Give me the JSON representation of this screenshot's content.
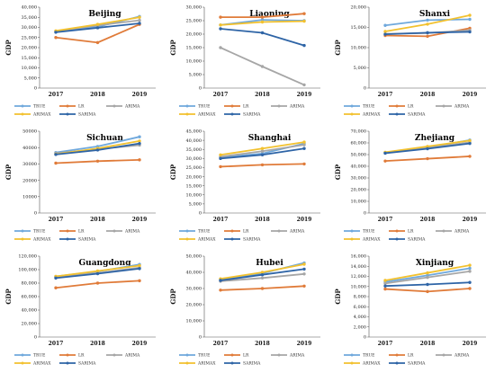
{
  "legend_labels": [
    "TRUE",
    "LR",
    "ARIMA",
    "ARIMAX",
    "SARIMA"
  ],
  "colors": {
    "TRUE": "#6fa8dc",
    "LR": "#e07b39",
    "ARIMA": "#a6a6a6",
    "ARIMAX": "#f2c12e",
    "SARIMA": "#2e64a6"
  },
  "chart_data": [
    {
      "type": "line",
      "title": "Beijing",
      "ylabel": "GDP",
      "categories": [
        "2017",
        "2018",
        "2019"
      ],
      "ylim": [
        0,
        40000
      ],
      "ytick_labels": [
        "0",
        "5,000",
        "10,000",
        "15,000",
        "20,000",
        "25,000",
        "30,000",
        "35,000",
        "40,000"
      ],
      "grid": false,
      "legend": "bottom",
      "series": [
        {
          "name": "TRUE",
          "values": [
            28000,
            30300,
            35400
          ]
        },
        {
          "name": "LR",
          "values": [
            25000,
            22500,
            31500
          ]
        },
        {
          "name": "ARIMA",
          "values": [
            28100,
            31000,
            33500
          ]
        },
        {
          "name": "ARIMAX",
          "values": [
            28300,
            31500,
            35000
          ]
        },
        {
          "name": "SARIMA",
          "values": [
            27600,
            29800,
            32000
          ]
        }
      ]
    },
    {
      "type": "line",
      "title": "Liaoning",
      "ylabel": "GDP",
      "categories": [
        "2017",
        "2018",
        "2019"
      ],
      "ylim": [
        0,
        30000
      ],
      "ytick_labels": [
        "0",
        "5,000",
        "10,000",
        "15,000",
        "20,000",
        "25,000",
        "30,000"
      ],
      "grid": false,
      "legend": "bottom",
      "series": [
        {
          "name": "TRUE",
          "values": [
            23400,
            25300,
            25000
          ]
        },
        {
          "name": "LR",
          "values": [
            26300,
            26300,
            27600
          ]
        },
        {
          "name": "ARIMA",
          "values": [
            15000,
            8000,
            1200
          ]
        },
        {
          "name": "ARIMAX",
          "values": [
            23400,
            24500,
            24800
          ]
        },
        {
          "name": "SARIMA",
          "values": [
            22000,
            20500,
            15800
          ]
        }
      ]
    },
    {
      "type": "line",
      "title": "Shanxi",
      "ylabel": "GDP",
      "categories": [
        "2017",
        "2018",
        "2019"
      ],
      "ylim": [
        0,
        20000
      ],
      "ytick_labels": [
        "0",
        "5,000",
        "10,000",
        "15,000",
        "20,000"
      ],
      "grid": false,
      "legend": "bottom",
      "series": [
        {
          "name": "TRUE",
          "values": [
            15500,
            16800,
            17000
          ]
        },
        {
          "name": "LR",
          "values": [
            13000,
            12800,
            14800
          ]
        },
        {
          "name": "ARIMA",
          "values": [
            13400,
            13600,
            14300
          ]
        },
        {
          "name": "ARIMAX",
          "values": [
            14000,
            15800,
            18000
          ]
        },
        {
          "name": "SARIMA",
          "values": [
            13300,
            13700,
            13900
          ]
        }
      ]
    },
    {
      "type": "line",
      "title": "Sichuan",
      "ylabel": "GDP",
      "categories": [
        "2017",
        "2018",
        "2019"
      ],
      "ylim": [
        0,
        50000
      ],
      "ytick_labels": [
        "0",
        "10000",
        "20000",
        "30000",
        "40000",
        "50000"
      ],
      "grid": false,
      "legend": "bottom",
      "series": [
        {
          "name": "TRUE",
          "values": [
            37000,
            40700,
            46600
          ]
        },
        {
          "name": "LR",
          "values": [
            30500,
            31700,
            32500
          ]
        },
        {
          "name": "ARIMA",
          "values": [
            36500,
            39000,
            41500
          ]
        },
        {
          "name": "ARIMAX",
          "values": [
            36000,
            39500,
            44000
          ]
        },
        {
          "name": "SARIMA",
          "values": [
            35800,
            38500,
            42500
          ]
        }
      ]
    },
    {
      "type": "line",
      "title": "Shanghai",
      "ylabel": "GDP",
      "categories": [
        "2017",
        "2018",
        "2019"
      ],
      "ylim": [
        0,
        45000
      ],
      "ytick_labels": [
        "0",
        "5,000",
        "10,000",
        "15,000",
        "20,000",
        "25,000",
        "30,000",
        "35,000",
        "40,000",
        "45,000"
      ],
      "grid": false,
      "legend": "bottom",
      "series": [
        {
          "name": "TRUE",
          "values": [
            30600,
            32700,
            38200
          ]
        },
        {
          "name": "LR",
          "values": [
            25500,
            26500,
            27000
          ]
        },
        {
          "name": "ARIMA",
          "values": [
            31000,
            34000,
            37500
          ]
        },
        {
          "name": "ARIMAX",
          "values": [
            32000,
            35500,
            39000
          ]
        },
        {
          "name": "SARIMA",
          "values": [
            30000,
            32000,
            35500
          ]
        }
      ]
    },
    {
      "type": "line",
      "title": "Zhejiang",
      "ylabel": "GDP",
      "categories": [
        "2017",
        "2018",
        "2019"
      ],
      "ylim": [
        0,
        70000
      ],
      "ytick_labels": [
        "0",
        "10,000",
        "20,000",
        "30,000",
        "40,000",
        "50,000",
        "60,000",
        "70,000"
      ],
      "grid": false,
      "legend": "bottom",
      "series": [
        {
          "name": "TRUE",
          "values": [
            51800,
            56200,
            62400
          ]
        },
        {
          "name": "LR",
          "values": [
            44500,
            46500,
            48500
          ]
        },
        {
          "name": "ARIMA",
          "values": [
            51500,
            55500,
            60500
          ]
        },
        {
          "name": "ARIMAX",
          "values": [
            52000,
            57000,
            62000
          ]
        },
        {
          "name": "SARIMA",
          "values": [
            51200,
            55000,
            59500
          ]
        }
      ]
    },
    {
      "type": "line",
      "title": "Guangdong",
      "ylabel": "GDP",
      "categories": [
        "2017",
        "2018",
        "2019"
      ],
      "ylim": [
        0,
        120000
      ],
      "ytick_labels": [
        "0",
        "20,000",
        "40,000",
        "60,000",
        "80,000",
        "100,000",
        "120,000"
      ],
      "grid": false,
      "legend": "bottom",
      "series": [
        {
          "name": "TRUE",
          "values": [
            89900,
            97300,
            107700
          ]
        },
        {
          "name": "LR",
          "values": [
            73000,
            80000,
            83500
          ]
        },
        {
          "name": "ARIMA",
          "values": [
            89000,
            95000,
            103000
          ]
        },
        {
          "name": "ARIMAX",
          "values": [
            90000,
            98000,
            106000
          ]
        },
        {
          "name": "SARIMA",
          "values": [
            87500,
            94000,
            101500
          ]
        }
      ]
    },
    {
      "type": "line",
      "title": "Hubei",
      "ylabel": "GDP",
      "categories": [
        "2017",
        "2018",
        "2019"
      ],
      "ylim": [
        0,
        50000
      ],
      "ytick_labels": [
        "0",
        "10,000",
        "20,000",
        "30,000",
        "40,000",
        "50,000"
      ],
      "grid": false,
      "legend": "bottom",
      "series": [
        {
          "name": "TRUE",
          "values": [
            35500,
            39400,
            45800
          ]
        },
        {
          "name": "LR",
          "values": [
            29000,
            30000,
            31500
          ]
        },
        {
          "name": "ARIMA",
          "values": [
            34500,
            36500,
            39000
          ]
        },
        {
          "name": "ARIMAX",
          "values": [
            36000,
            40000,
            45000
          ]
        },
        {
          "name": "SARIMA",
          "values": [
            35000,
            38500,
            42000
          ]
        }
      ]
    },
    {
      "type": "line",
      "title": "Xinjiang",
      "ylabel": "GDP",
      "categories": [
        "2017",
        "2018",
        "2019"
      ],
      "ylim": [
        0,
        16000
      ],
      "ytick_labels": [
        "0",
        "2,000",
        "4,000",
        "6,000",
        "8,000",
        "10,000",
        "12,000",
        "14,000",
        "16,000"
      ],
      "grid": false,
      "legend": "bottom",
      "series": [
        {
          "name": "TRUE",
          "values": [
            10900,
            12200,
            13600
          ]
        },
        {
          "name": "LR",
          "values": [
            9500,
            9000,
            9600
          ]
        },
        {
          "name": "ARIMA",
          "values": [
            10600,
            11800,
            13000
          ]
        },
        {
          "name": "ARIMAX",
          "values": [
            11200,
            12700,
            14200
          ]
        },
        {
          "name": "SARIMA",
          "values": [
            10100,
            10400,
            10800
          ]
        }
      ]
    }
  ]
}
